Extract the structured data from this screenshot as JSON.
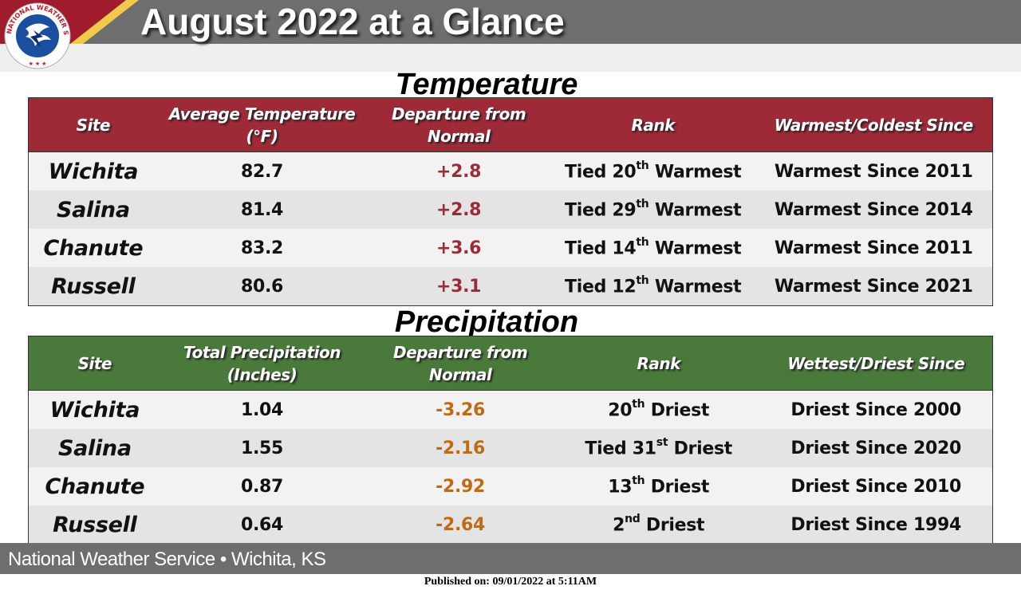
{
  "header": {
    "title": "August 2022 at a Glance",
    "logo_text": "NATIONAL WEATHER SERVICE"
  },
  "temperature": {
    "section_title": "Temperature",
    "columns": [
      "Site",
      "Average Temperature",
      "(°F)",
      "Departure from",
      "Normal",
      "Rank",
      "Warmest/Coldest Since"
    ],
    "rows": [
      {
        "site": "Wichita",
        "value": "82.7",
        "departure": "+2.8",
        "rank_pre": "Tied 20",
        "rank_sup": "th",
        "rank_post": " Warmest",
        "since": "Warmest Since 2011"
      },
      {
        "site": "Salina",
        "value": "81.4",
        "departure": "+2.8",
        "rank_pre": "Tied 29",
        "rank_sup": "th",
        "rank_post": " Warmest",
        "since": "Warmest Since 2014"
      },
      {
        "site": "Chanute",
        "value": "83.2",
        "departure": "+3.6",
        "rank_pre": "Tied 14",
        "rank_sup": "th",
        "rank_post": " Warmest",
        "since": "Warmest Since 2011"
      },
      {
        "site": "Russell",
        "value": "80.6",
        "departure": "+3.1",
        "rank_pre": "Tied 12",
        "rank_sup": "th",
        "rank_post": " Warmest",
        "since": "Warmest Since 2021"
      }
    ]
  },
  "precipitation": {
    "section_title": "Precipitation",
    "columns": [
      "Site",
      "Total Precipitation",
      "(Inches)",
      "Departure from",
      "Normal",
      "Rank",
      "Wettest/Driest Since"
    ],
    "rows": [
      {
        "site": "Wichita",
        "value": "1.04",
        "departure": "-3.26",
        "rank_pre": "20",
        "rank_sup": "th",
        "rank_post": " Driest",
        "since": "Driest Since 2000"
      },
      {
        "site": "Salina",
        "value": "1.55",
        "departure": "-2.16",
        "rank_pre": "Tied 31",
        "rank_sup": "st",
        "rank_post": " Driest",
        "since": "Driest Since 2020"
      },
      {
        "site": "Chanute",
        "value": "0.87",
        "departure": "-2.92",
        "rank_pre": "13",
        "rank_sup": "th",
        "rank_post": " Driest",
        "since": "Driest Since 2010"
      },
      {
        "site": "Russell",
        "value": "0.64",
        "departure": "-2.64",
        "rank_pre": "2",
        "rank_sup": "nd",
        "rank_post": " Driest",
        "since": "Driest Since 1994"
      }
    ]
  },
  "footer": {
    "office": "National Weather Service • Wichita, KS",
    "published": "Published on: 09/01/2022 at 5:11AM"
  },
  "colors": {
    "temp_header": "#9e2a38",
    "precip_header": "#4a7a3b",
    "warm_departure": "#9e2a38",
    "dry_departure": "#c06a12",
    "banner_gray": "#6e6e6e"
  }
}
